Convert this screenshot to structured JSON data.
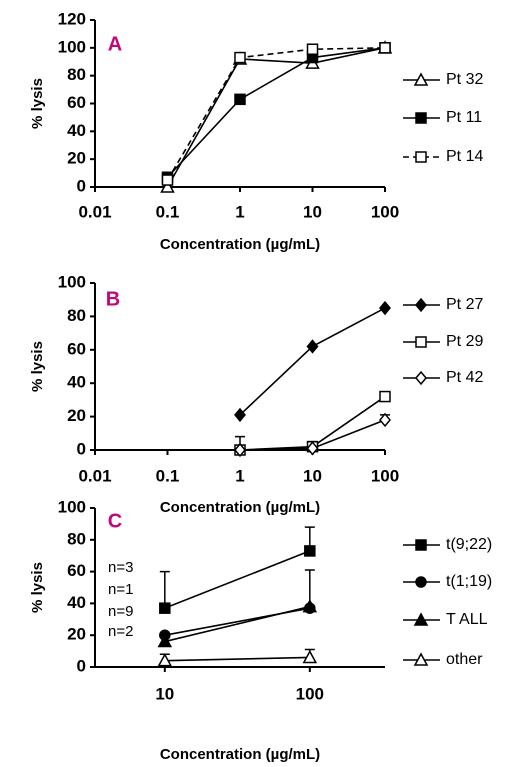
{
  "chart_data": [
    {
      "type": "line",
      "label": "A",
      "ylabel": "% lysis",
      "xlabel": "Concentration (µg/mL)",
      "xscale": "log",
      "xlim": [
        0.01,
        100
      ],
      "xticks": [
        0.01,
        0.1,
        1,
        10,
        100
      ],
      "ylim": [
        0,
        120
      ],
      "yticks": [
        0,
        20,
        40,
        60,
        80,
        100,
        120
      ],
      "x": [
        0.1,
        1,
        10,
        100
      ],
      "series": [
        {
          "name": "Pt 32",
          "color": "#000000",
          "marker": "triangle-open",
          "dash": false,
          "values": [
            0,
            92,
            89,
            100
          ]
        },
        {
          "name": "Pt 11",
          "color": "#000000",
          "marker": "square",
          "dash": false,
          "values": [
            7,
            63,
            93,
            100
          ]
        },
        {
          "name": "Pt 14",
          "color": "#000000",
          "marker": "square-open",
          "dash": true,
          "values": [
            5,
            93,
            99,
            100
          ]
        }
      ]
    },
    {
      "type": "line",
      "label": "B",
      "ylabel": "% lysis",
      "xlabel": "Concentration (µg/mL)",
      "xscale": "log",
      "xlim": [
        0.01,
        100
      ],
      "xticks": [
        0.01,
        0.1,
        1,
        10,
        100
      ],
      "ylim": [
        0,
        100
      ],
      "yticks": [
        0,
        20,
        40,
        60,
        80,
        100
      ],
      "x": [
        1,
        10,
        100
      ],
      "series": [
        {
          "name": "Pt 27",
          "color": "#000000",
          "marker": "diamond",
          "dash": false,
          "values": [
            21,
            62,
            85
          ]
        },
        {
          "name": "Pt 29",
          "color": "#000000",
          "marker": "square-open",
          "dash": false,
          "values": [
            0,
            2,
            32
          ]
        },
        {
          "name": "Pt 42",
          "color": "#000000",
          "marker": "diamond-open",
          "dash": false,
          "values": [
            0,
            1,
            18
          ],
          "errors": [
            8,
            4,
            3
          ]
        }
      ]
    },
    {
      "type": "line",
      "label": "C",
      "ylabel": "% lysis",
      "xlabel": "Concentration (µg/mL)",
      "xscale": "log",
      "xlim": [
        3.3,
        330
      ],
      "xticks": [
        10,
        100
      ],
      "ylim": [
        0,
        100
      ],
      "yticks": [
        0,
        20,
        40,
        60,
        80,
        100
      ],
      "x": [
        10,
        100
      ],
      "annotations": [
        "n=3",
        "n=1",
        "n=9",
        "n=2"
      ],
      "series": [
        {
          "name": "t(9;22)",
          "color": "#000000",
          "marker": "square",
          "dash": false,
          "values": [
            37,
            73
          ],
          "errors": [
            23,
            15
          ]
        },
        {
          "name": "t(1;19)",
          "color": "#000000",
          "marker": "circle",
          "dash": false,
          "values": [
            20,
            37
          ]
        },
        {
          "name": "T ALL",
          "color": "#000000",
          "marker": "triangle",
          "dash": false,
          "values": [
            16,
            38
          ],
          "errors": [
            null,
            23
          ]
        },
        {
          "name": "other",
          "color": "#000000",
          "marker": "triangle-open",
          "dash": false,
          "values": [
            4,
            6
          ],
          "errors": [
            4,
            5
          ]
        }
      ]
    }
  ]
}
